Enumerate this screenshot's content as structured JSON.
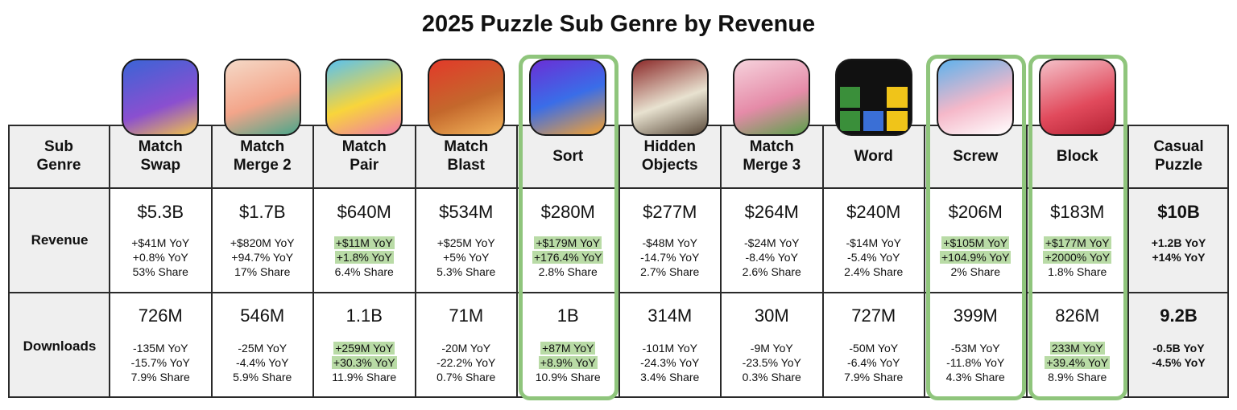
{
  "title": "2025 Puzzle Sub Genre by Revenue",
  "row_labels": {
    "sub_genre": [
      "Sub",
      "Genre"
    ],
    "revenue": "Revenue",
    "downloads": "Downloads"
  },
  "highlight_color": "#b9dba6",
  "frame_color": "#8fc57c",
  "chart_data": {
    "type": "table",
    "title": "2025 Puzzle Sub Genre by Revenue",
    "columns": [
      {
        "genre": [
          "Match",
          "Swap"
        ],
        "icon": "king-character-icon",
        "framed": false,
        "revenue": "$5.3B",
        "rev_yoy_abs": "+$41M YoY",
        "rev_yoy_pct": "+0.8% YoY",
        "rev_share": "53% Share",
        "rev_hl": false,
        "downloads": "726M",
        "dl_yoy_abs": "-135M YoY",
        "dl_yoy_pct": "-15.7% YoY",
        "dl_share": "7.9% Share",
        "dl_hl": false
      },
      {
        "genre": [
          "Match",
          "Merge 2"
        ],
        "icon": "green-hair-woman-icon",
        "framed": false,
        "revenue": "$1.7B",
        "rev_yoy_abs": "+$820M YoY",
        "rev_yoy_pct": "+94.7% YoY",
        "rev_share": "17% Share",
        "rev_hl": false,
        "downloads": "546M",
        "dl_yoy_abs": "-25M YoY",
        "dl_yoy_pct": "-4.4% YoY",
        "dl_share": "5.9% Share",
        "dl_hl": false
      },
      {
        "genre": [
          "Match",
          "Pair"
        ],
        "icon": "yellow-duck-icon",
        "framed": false,
        "revenue": "$640M",
        "rev_yoy_abs": "+$11M YoY",
        "rev_yoy_pct": "+1.8% YoY",
        "rev_share": "6.4% Share",
        "rev_hl": true,
        "downloads": "1.1B",
        "dl_yoy_abs": "+259M YoY",
        "dl_yoy_pct": "+30.3% YoY",
        "dl_share": "11.9% Share",
        "dl_hl": true
      },
      {
        "genre": [
          "Match",
          "Blast"
        ],
        "icon": "brown-bear-icon",
        "framed": false,
        "revenue": "$534M",
        "rev_yoy_abs": "+$25M YoY",
        "rev_yoy_pct": "+5% YoY",
        "rev_share": "5.3% Share",
        "rev_hl": false,
        "downloads": "71M",
        "dl_yoy_abs": "-20M YoY",
        "dl_yoy_pct": "-22.2% YoY",
        "dl_share": "0.7% Share",
        "dl_hl": false
      },
      {
        "genre": [
          "Sort"
        ],
        "icon": "color-bottles-icon",
        "framed": true,
        "revenue": "$280M",
        "rev_yoy_abs": "+$179M YoY",
        "rev_yoy_pct": "+176.4% YoY",
        "rev_share": "2.8% Share",
        "rev_hl": true,
        "downloads": "1B",
        "dl_yoy_abs": "+87M YoY",
        "dl_yoy_pct": "+8.9% YoY",
        "dl_share": "10.9% Share",
        "dl_hl": true
      },
      {
        "genre": [
          "Hidden",
          "Objects"
        ],
        "icon": "detective-woman-icon",
        "framed": false,
        "revenue": "$277M",
        "rev_yoy_abs": "-$48M YoY",
        "rev_yoy_pct": "-14.7% YoY",
        "rev_share": "2.7% Share",
        "rev_hl": false,
        "downloads": "314M",
        "dl_yoy_abs": "-101M YoY",
        "dl_yoy_pct": "-24.3% YoY",
        "dl_share": "3.4% Share",
        "dl_hl": false
      },
      {
        "genre": [
          "Match",
          "Merge 3"
        ],
        "icon": "heart-garden-icon",
        "framed": false,
        "revenue": "$264M",
        "rev_yoy_abs": "-$24M YoY",
        "rev_yoy_pct": "-8.4% YoY",
        "rev_share": "2.6% Share",
        "rev_hl": false,
        "downloads": "30M",
        "dl_yoy_abs": "-9M YoY",
        "dl_yoy_pct": "-23.5% YoY",
        "dl_share": "0.3% Share",
        "dl_hl": false
      },
      {
        "genre": [
          "Word"
        ],
        "icon": "nyt-wordle-grid-icon",
        "framed": false,
        "revenue": "$240M",
        "rev_yoy_abs": "-$14M YoY",
        "rev_yoy_pct": "-5.4% YoY",
        "rev_share": "2.4% Share",
        "rev_hl": false,
        "downloads": "727M",
        "dl_yoy_abs": "-50M YoY",
        "dl_yoy_pct": "-6.4% YoY",
        "dl_share": "7.9% Share",
        "dl_hl": false
      },
      {
        "genre": [
          "Screw"
        ],
        "icon": "pink-house-icon",
        "framed": true,
        "revenue": "$206M",
        "rev_yoy_abs": "+$105M YoY",
        "rev_yoy_pct": "+104.9% YoY",
        "rev_share": "2% Share",
        "rev_hl": true,
        "downloads": "399M",
        "dl_yoy_abs": "-53M YoY",
        "dl_yoy_pct": "-11.8% YoY",
        "dl_share": "4.3% Share",
        "dl_hl": false
      },
      {
        "genre": [
          "Block"
        ],
        "icon": "red-block-board-icon",
        "framed": true,
        "revenue": "$183M",
        "rev_yoy_abs": "+$177M YoY",
        "rev_yoy_pct": "+2000% YoY",
        "rev_share": "1.8% Share",
        "rev_hl": true,
        "downloads": "826M",
        "dl_yoy_abs": "233M YoY",
        "dl_yoy_pct": "+39.4% YoY",
        "dl_share": "8.9% Share",
        "dl_hl": true
      }
    ],
    "total": {
      "genre": [
        "Casual",
        "Puzzle"
      ],
      "revenue": "$10B",
      "rev_yoy_abs": "+1.2B YoY",
      "rev_yoy_pct": "+14% YoY",
      "downloads": "9.2B",
      "dl_yoy_abs": "-0.5B YoY",
      "dl_yoy_pct": "-4.5% YoY"
    }
  }
}
